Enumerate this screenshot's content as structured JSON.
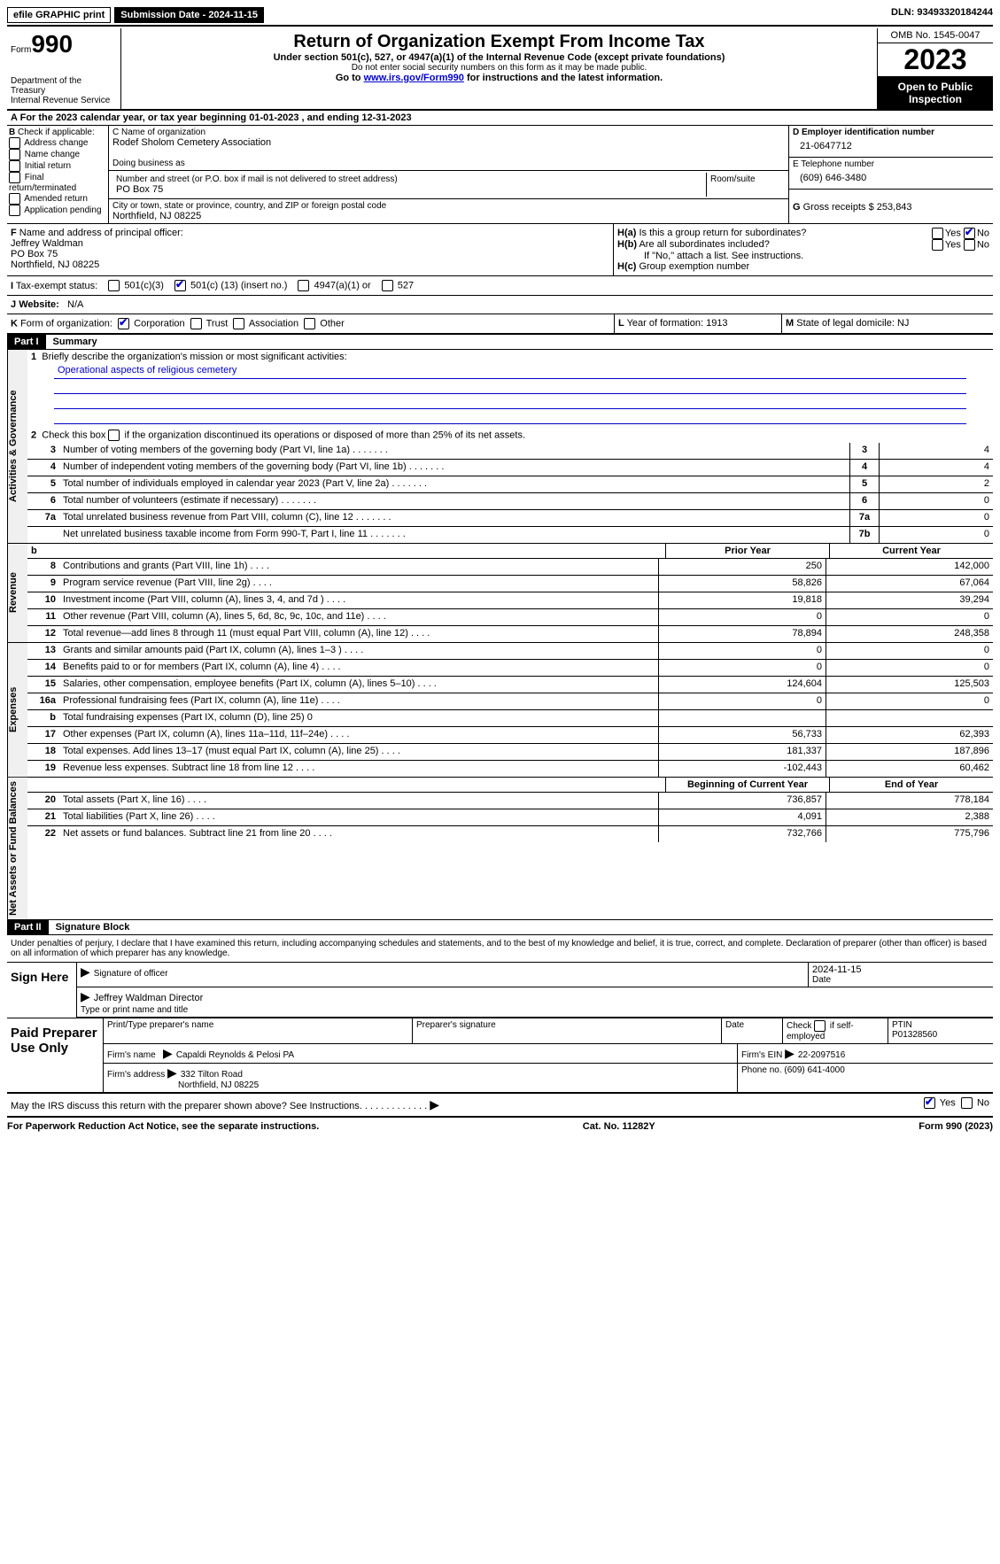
{
  "topbar": {
    "efile": "efile GRAPHIC print",
    "submission": "Submission Date - 2024-11-15",
    "dln_label": "DLN:",
    "dln": "93493320184244"
  },
  "header": {
    "form_label": "Form",
    "form_num": "990",
    "dept": "Department of the Treasury",
    "irs": "Internal Revenue Service",
    "title": "Return of Organization Exempt From Income Tax",
    "sub1": "Under section 501(c), 527, or 4947(a)(1) of the Internal Revenue Code (except private foundations)",
    "sub2": "Do not enter social security numbers on this form as it may be made public.",
    "sub3_pre": "Go to ",
    "sub3_link": "www.irs.gov/Form990",
    "sub3_post": " for instructions and the latest information.",
    "omb": "OMB No. 1545-0047",
    "year": "2023",
    "inspect": "Open to Public Inspection"
  },
  "row_a": {
    "label": "A",
    "text": "For the 2023 calendar year, or tax year beginning 01-01-2023   , and ending 12-31-2023"
  },
  "col_b": {
    "label": "B",
    "intro": "Check if applicable:",
    "items": [
      "Address change",
      "Name change",
      "Initial return",
      "Final return/terminated",
      "Amended return",
      "Application pending"
    ]
  },
  "col_c": {
    "name_label": "C Name of organization",
    "name": "Rodef Sholom Cemetery Association",
    "dba_label": "Doing business as",
    "dba": "",
    "addr_label": "Number and street (or P.O. box if mail is not delivered to street address)",
    "addr": "PO Box 75",
    "room_label": "Room/suite",
    "room": "",
    "city_label": "City or town, state or province, country, and ZIP or foreign postal code",
    "city": "Northfield, NJ  08225"
  },
  "col_d": {
    "ein_label": "D Employer identification number",
    "ein": "21-0647712",
    "tel_label": "E Telephone number",
    "tel": "(609) 646-3480",
    "gross_label": "G",
    "gross_text": "Gross receipts $",
    "gross": "253,843"
  },
  "sec_f": {
    "label": "F",
    "text": "Name and address of principal officer:",
    "name": "Jeffrey Waldman",
    "addr1": "PO Box 75",
    "addr2": "Northfield, NJ  08225"
  },
  "sec_h": {
    "ha_label": "H(a)",
    "ha_text": "Is this a group return for subordinates?",
    "hb_label": "H(b)",
    "hb_text": "Are all subordinates included?",
    "hb_note": "If \"No,\" attach a list. See instructions.",
    "hc_label": "H(c)",
    "hc_text": "Group exemption number",
    "yes": "Yes",
    "no": "No"
  },
  "status": {
    "label": "I",
    "text": "Tax-exempt status:",
    "c3": "501(c)(3)",
    "c_pre": "501(c) (",
    "c_num": "13",
    "c_post": ") (insert no.)",
    "a1": "4947(a)(1) or",
    "s527": "527"
  },
  "web": {
    "label": "J",
    "text": "Website:",
    "val": "N/A"
  },
  "row_k": {
    "k_label": "K",
    "k_text": "Form of organization:",
    "corp": "Corporation",
    "trust": "Trust",
    "assoc": "Association",
    "other": "Other",
    "l_label": "L",
    "l_text": "Year of formation:",
    "l_val": "1913",
    "m_label": "M",
    "m_text": "State of legal domicile:",
    "m_val": "NJ"
  },
  "part1": {
    "label": "Part I",
    "title": "Summary"
  },
  "gov": {
    "vert": "Activities & Governance",
    "l1_num": "1",
    "l1": "Briefly describe the organization's mission or most significant activities:",
    "mission": "Operational aspects of religious cemetery",
    "l2_num": "2",
    "l2": "Check this box",
    "l2b": "if the organization discontinued its operations or disposed of more than 25% of its net assets.",
    "rows": [
      {
        "n": "3",
        "t": "Number of voting members of the governing body (Part VI, line 1a)",
        "box": "3",
        "v": "4"
      },
      {
        "n": "4",
        "t": "Number of independent voting members of the governing body (Part VI, line 1b)",
        "box": "4",
        "v": "4"
      },
      {
        "n": "5",
        "t": "Total number of individuals employed in calendar year 2023 (Part V, line 2a)",
        "box": "5",
        "v": "2"
      },
      {
        "n": "6",
        "t": "Total number of volunteers (estimate if necessary)",
        "box": "6",
        "v": "0"
      },
      {
        "n": "7a",
        "t": "Total unrelated business revenue from Part VIII, column (C), line 12",
        "box": "7a",
        "v": "0"
      },
      {
        "n": "",
        "t": "Net unrelated business taxable income from Form 990-T, Part I, line 11",
        "box": "7b",
        "v": "0"
      }
    ]
  },
  "rev": {
    "vert": "Revenue",
    "hdr_b": "b",
    "prior": "Prior Year",
    "curr": "Current Year",
    "rows": [
      {
        "n": "8",
        "t": "Contributions and grants (Part VIII, line 1h)",
        "p": "250",
        "c": "142,000"
      },
      {
        "n": "9",
        "t": "Program service revenue (Part VIII, line 2g)",
        "p": "58,826",
        "c": "67,064"
      },
      {
        "n": "10",
        "t": "Investment income (Part VIII, column (A), lines 3, 4, and 7d )",
        "p": "19,818",
        "c": "39,294"
      },
      {
        "n": "11",
        "t": "Other revenue (Part VIII, column (A), lines 5, 6d, 8c, 9c, 10c, and 11e)",
        "p": "0",
        "c": "0"
      },
      {
        "n": "12",
        "t": "Total revenue—add lines 8 through 11 (must equal Part VIII, column (A), line 12)",
        "p": "78,894",
        "c": "248,358"
      }
    ]
  },
  "exp": {
    "vert": "Expenses",
    "rows": [
      {
        "n": "13",
        "t": "Grants and similar amounts paid (Part IX, column (A), lines 1–3 )",
        "p": "0",
        "c": "0"
      },
      {
        "n": "14",
        "t": "Benefits paid to or for members (Part IX, column (A), line 4)",
        "p": "0",
        "c": "0"
      },
      {
        "n": "15",
        "t": "Salaries, other compensation, employee benefits (Part IX, column (A), lines 5–10)",
        "p": "124,604",
        "c": "125,503"
      },
      {
        "n": "16a",
        "t": "Professional fundraising fees (Part IX, column (A), line 11e)",
        "p": "0",
        "c": "0"
      },
      {
        "n": "b",
        "t": "Total fundraising expenses (Part IX, column (D), line 25) 0",
        "grey": true
      },
      {
        "n": "17",
        "t": "Other expenses (Part IX, column (A), lines 11a–11d, 11f–24e)",
        "p": "56,733",
        "c": "62,393"
      },
      {
        "n": "18",
        "t": "Total expenses. Add lines 13–17 (must equal Part IX, column (A), line 25)",
        "p": "181,337",
        "c": "187,896"
      },
      {
        "n": "19",
        "t": "Revenue less expenses. Subtract line 18 from line 12",
        "p": "-102,443",
        "c": "60,462"
      }
    ]
  },
  "net": {
    "vert": "Net Assets or Fund Balances",
    "begin": "Beginning of Current Year",
    "end": "End of Year",
    "rows": [
      {
        "n": "20",
        "t": "Total assets (Part X, line 16)",
        "p": "736,857",
        "c": "778,184"
      },
      {
        "n": "21",
        "t": "Total liabilities (Part X, line 26)",
        "p": "4,091",
        "c": "2,388"
      },
      {
        "n": "22",
        "t": "Net assets or fund balances. Subtract line 21 from line 20",
        "p": "732,766",
        "c": "775,796"
      }
    ]
  },
  "part2": {
    "label": "Part II",
    "title": "Signature Block"
  },
  "sig": {
    "text": "Under penalties of perjury, I declare that I have examined this return, including accompanying schedules and statements, and to the best of my knowledge and belief, it is true, correct, and complete. Declaration of preparer (other than officer) is based on all information of which preparer has any knowledge.",
    "here": "Sign Here",
    "sig_label": "Signature of officer",
    "date_label": "Date",
    "date": "2024-11-15",
    "name": "Jeffrey Waldman Director",
    "name_label": "Type or print name and title"
  },
  "prep": {
    "label": "Paid Preparer Use Only",
    "print_label": "Print/Type preparer's name",
    "sig_label": "Preparer's signature",
    "date_label": "Date",
    "check_label": "Check",
    "if_label": "if self-employed",
    "ptin_label": "PTIN",
    "ptin": "P01328560",
    "firm_label": "Firm's name",
    "firm": "Capaldi Reynolds & Pelosi PA",
    "ein_label": "Firm's EIN",
    "ein": "22-2097516",
    "addr_label": "Firm's address",
    "addr1": "332 Tilton Road",
    "addr2": "Northfield, NJ  08225",
    "phone_label": "Phone no.",
    "phone": "(609) 641-4000"
  },
  "discuss": {
    "text": "May the IRS discuss this return with the preparer shown above? See Instructions.",
    "yes": "Yes",
    "no": "No"
  },
  "footer": {
    "left": "For Paperwork Reduction Act Notice, see the separate instructions.",
    "cat": "Cat. No. 11282Y",
    "right": "Form 990 (2023)"
  }
}
